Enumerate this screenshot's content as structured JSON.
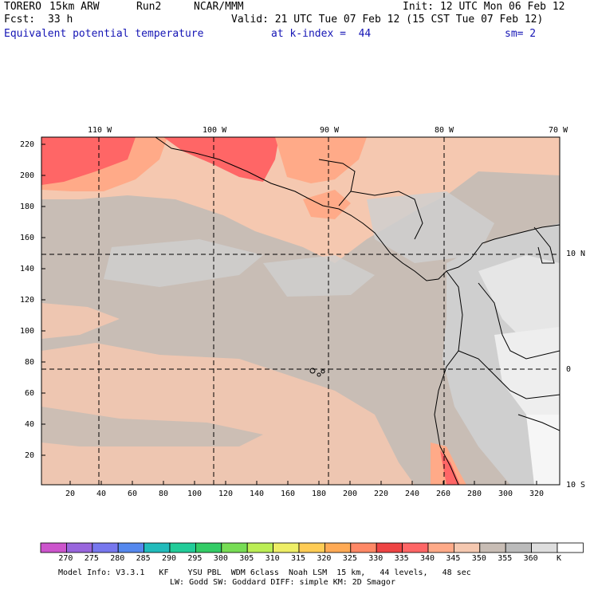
{
  "header": {
    "model": "TORERO",
    "resolution": "15km ARW",
    "run": "Run2",
    "org": "NCAR/MMM",
    "init": "Init: 12 UTC Mon 06 Feb 12",
    "fcst_label": "Fcst:",
    "fcst_hours": "33 h",
    "valid": "Valid: 21 UTC Tue 07 Feb 12 (15 CST Tue 07 Feb 12)",
    "field": "Equivalent potential temperature",
    "level": "at k-index =  44",
    "smoothing": "sm= 2"
  },
  "map": {
    "top_lon_labels": [
      "110 W",
      "100 W",
      "90 W",
      "80 W",
      "70 W"
    ],
    "right_lat_labels": [
      "10 N",
      "0",
      "10 S"
    ],
    "y_axis_ticks": [
      "220",
      "200",
      "180",
      "160",
      "140",
      "120",
      "100",
      "80",
      "60",
      "40",
      "20"
    ],
    "x_axis_ticks": [
      "20",
      "40",
      "60",
      "80",
      "100",
      "120",
      "140",
      "160",
      "180",
      "200",
      "220",
      "240",
      "260",
      "280",
      "300",
      "320"
    ]
  },
  "legend": {
    "values": [
      "270",
      "275",
      "280",
      "285",
      "290",
      "295",
      "300",
      "305",
      "310",
      "315",
      "320",
      "325",
      "330",
      "335",
      "340",
      "345",
      "350",
      "355",
      "360"
    ],
    "unit": "K",
    "colors": [
      "#cc55cc",
      "#9966dd",
      "#7777ee",
      "#5588ee",
      "#22bbbb",
      "#22cc99",
      "#33cc66",
      "#77dd55",
      "#bbee55",
      "#eeee66",
      "#ffcc55",
      "#ffaa55",
      "#ff8866",
      "#ee4444",
      "#ff6666",
      "#ffaa88",
      "#f5c8b0",
      "#c8bdb5",
      "#bbbbbb",
      "#dedede",
      "#ffffff"
    ]
  },
  "footer": {
    "line1": "Model Info: V3.3.1   KF    YSU PBL  WDM 6class  Noah LSM  15 km,   44 levels,   48 sec",
    "line2": "LW: Godd SW: Goddard DIFF: simple KM: 2D Smagor"
  }
}
